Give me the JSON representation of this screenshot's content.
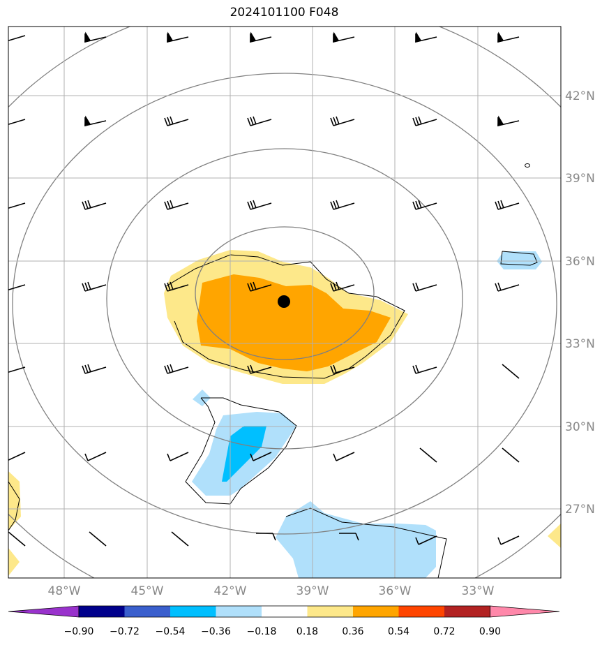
{
  "title": "2024101100 F048",
  "map": {
    "lon_range": [
      -50,
      -30
    ],
    "lat_range": [
      25,
      45
    ],
    "lon_ticks": [
      "48°W",
      "45°W",
      "42°W",
      "39°W",
      "36°W",
      "33°W"
    ],
    "lat_ticks": [
      "42°N",
      "39°N",
      "36°N",
      "33°N",
      "30°N",
      "27°N"
    ],
    "center_marker": {
      "lon": -40,
      "lat": 34.5
    },
    "fill_colors": {
      "light_yellow": "#fde88a",
      "orange": "#ffa500",
      "light_blue": "#b0e0fb",
      "deep_sky_blue": "#00bfff"
    },
    "contour_color": "#808080",
    "grid_color": "#b0b0b0"
  },
  "colorbar": {
    "tick_labels": [
      "−0.90",
      "−0.72",
      "−0.54",
      "−0.36",
      "−0.18",
      "0.18",
      "0.36",
      "0.54",
      "0.72",
      "0.90"
    ],
    "colors": [
      "#9932cc",
      "#00008b",
      "#3a5fcd",
      "#00bfff",
      "#b0e0fb",
      "#ffffff",
      "#fde88a",
      "#ffa500",
      "#ff4500",
      "#b22222",
      "#ff88aa"
    ]
  }
}
